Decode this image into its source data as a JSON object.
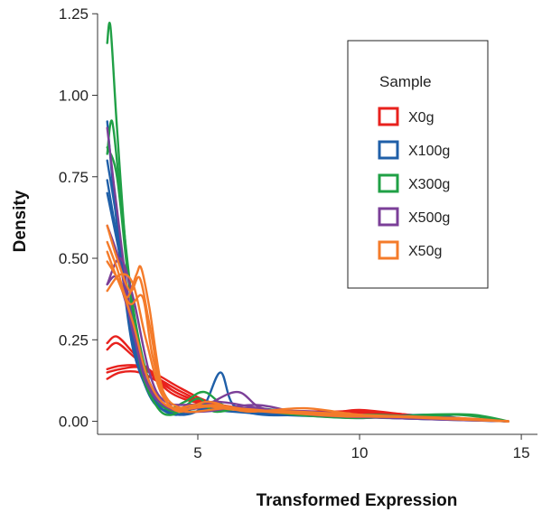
{
  "chart_data": {
    "type": "line",
    "subtype": "density",
    "xlabel": "Transformed Expression",
    "ylabel": "Density",
    "xlim": [
      1.9,
      15.5
    ],
    "ylim": [
      -0.04,
      1.27
    ],
    "x_ticks": [
      5,
      10,
      15
    ],
    "x_tick_labels": [
      "5",
      "10",
      "15"
    ],
    "y_ticks": [
      0,
      0.25,
      0.5,
      0.75,
      1.0,
      1.25
    ],
    "y_tick_labels": [
      "0.00",
      "0.25",
      "0.50",
      "0.75",
      "1.00",
      "1.25"
    ],
    "grid": false,
    "legend": {
      "title": "Sample",
      "placement": "top-right"
    },
    "series": [
      {
        "name": "X0g",
        "color": "#e8211d",
        "curves": [
          [
            [
              2.2,
              0.13
            ],
            [
              2.6,
              0.15
            ],
            [
              3.2,
              0.15
            ],
            [
              3.8,
              0.12
            ],
            [
              4.5,
              0.08
            ],
            [
              5.5,
              0.045
            ],
            [
              7,
              0.03
            ],
            [
              9,
              0.03
            ],
            [
              10.2,
              0.03
            ],
            [
              11.5,
              0.02
            ],
            [
              13,
              0.01
            ],
            [
              14.6,
              0.0
            ]
          ],
          [
            [
              2.2,
              0.15
            ],
            [
              2.6,
              0.16
            ],
            [
              3.2,
              0.165
            ],
            [
              3.8,
              0.13
            ],
            [
              4.5,
              0.09
            ],
            [
              5.5,
              0.05
            ],
            [
              7,
              0.03
            ],
            [
              9,
              0.025
            ],
            [
              10,
              0.035
            ],
            [
              11.5,
              0.02
            ],
            [
              13,
              0.01
            ],
            [
              14.6,
              0.0
            ]
          ],
          [
            [
              2.2,
              0.16
            ],
            [
              2.6,
              0.17
            ],
            [
              3.2,
              0.17
            ],
            [
              3.8,
              0.14
            ],
            [
              4.5,
              0.1
            ],
            [
              5.5,
              0.055
            ],
            [
              7,
              0.035
            ],
            [
              9,
              0.03
            ],
            [
              10,
              0.03
            ],
            [
              11.5,
              0.015
            ],
            [
              13,
              0.008
            ],
            [
              14.6,
              0.0
            ]
          ],
          [
            [
              2.2,
              0.22
            ],
            [
              2.5,
              0.24
            ],
            [
              3.0,
              0.2
            ],
            [
              3.6,
              0.15
            ],
            [
              4.3,
              0.09
            ],
            [
              5.5,
              0.05
            ],
            [
              7,
              0.03
            ],
            [
              9,
              0.02
            ],
            [
              10,
              0.025
            ],
            [
              11.5,
              0.015
            ],
            [
              13,
              0.008
            ],
            [
              14.6,
              0.0
            ]
          ],
          [
            [
              2.2,
              0.24
            ],
            [
              2.5,
              0.26
            ],
            [
              3.0,
              0.21
            ],
            [
              3.6,
              0.14
            ],
            [
              4.3,
              0.08
            ],
            [
              5.5,
              0.045
            ],
            [
              7,
              0.03
            ],
            [
              9,
              0.025
            ],
            [
              10.5,
              0.02
            ],
            [
              12,
              0.012
            ],
            [
              13.5,
              0.005
            ],
            [
              14.6,
              0.0
            ]
          ]
        ]
      },
      {
        "name": "X100g",
        "color": "#1f5fa8",
        "curves": [
          [
            [
              2.2,
              0.92
            ],
            [
              2.5,
              0.6
            ],
            [
              2.9,
              0.3
            ],
            [
              3.4,
              0.12
            ],
            [
              4.0,
              0.04
            ],
            [
              4.6,
              0.02
            ],
            [
              5.2,
              0.05
            ],
            [
              5.7,
              0.15
            ],
            [
              6.1,
              0.05
            ],
            [
              7,
              0.02
            ],
            [
              9,
              0.02
            ],
            [
              11,
              0.01
            ],
            [
              13,
              0.005
            ],
            [
              14.6,
              0.0
            ]
          ],
          [
            [
              2.2,
              0.8
            ],
            [
              2.6,
              0.55
            ],
            [
              3.0,
              0.25
            ],
            [
              3.5,
              0.08
            ],
            [
              4.1,
              0.03
            ],
            [
              5,
              0.04
            ],
            [
              6,
              0.03
            ],
            [
              7.5,
              0.02
            ],
            [
              9,
              0.015
            ],
            [
              11,
              0.012
            ],
            [
              13,
              0.005
            ],
            [
              14.6,
              0.0
            ]
          ],
          [
            [
              2.2,
              0.74
            ],
            [
              2.6,
              0.5
            ],
            [
              3.0,
              0.22
            ],
            [
              3.6,
              0.07
            ],
            [
              4.3,
              0.02
            ],
            [
              5.2,
              0.05
            ],
            [
              6.5,
              0.03
            ],
            [
              8,
              0.02
            ],
            [
              10,
              0.01
            ],
            [
              12,
              0.02
            ],
            [
              13.5,
              0.005
            ],
            [
              14.6,
              0.0
            ]
          ],
          [
            [
              2.2,
              0.7
            ],
            [
              2.7,
              0.45
            ],
            [
              3.1,
              0.2
            ],
            [
              3.7,
              0.06
            ],
            [
              4.4,
              0.02
            ],
            [
              5.5,
              0.04
            ],
            [
              7,
              0.03
            ],
            [
              9,
              0.02
            ],
            [
              11,
              0.01
            ],
            [
              14.6,
              0.0
            ]
          ]
        ]
      },
      {
        "name": "X300g",
        "color": "#20a046",
        "curves": [
          [
            [
              2.2,
              1.16
            ],
            [
              2.3,
              1.21
            ],
            [
              2.5,
              0.9
            ],
            [
              2.8,
              0.5
            ],
            [
              3.2,
              0.18
            ],
            [
              3.7,
              0.05
            ],
            [
              4.2,
              0.02
            ],
            [
              5,
              0.07
            ],
            [
              5.5,
              0.03
            ],
            [
              6.5,
              0.04
            ],
            [
              8,
              0.02
            ],
            [
              10,
              0.01
            ],
            [
              12,
              0.02
            ],
            [
              13.5,
              0.02
            ],
            [
              14.6,
              0.0
            ]
          ],
          [
            [
              2.2,
              0.82
            ],
            [
              2.35,
              0.92
            ],
            [
              2.6,
              0.7
            ],
            [
              3.0,
              0.35
            ],
            [
              3.5,
              0.12
            ],
            [
              4.0,
              0.04
            ],
            [
              4.6,
              0.06
            ],
            [
              5.2,
              0.09
            ],
            [
              6,
              0.04
            ],
            [
              7.5,
              0.03
            ],
            [
              9,
              0.02
            ],
            [
              11,
              0.01
            ],
            [
              13,
              0.02
            ],
            [
              14.6,
              0.0
            ]
          ],
          [
            [
              2.2,
              0.84
            ],
            [
              2.5,
              0.75
            ],
            [
              2.9,
              0.4
            ],
            [
              3.4,
              0.14
            ],
            [
              4.0,
              0.04
            ],
            [
              5,
              0.03
            ],
            [
              6.8,
              0.04
            ],
            [
              8.5,
              0.02
            ],
            [
              10.5,
              0.02
            ],
            [
              12.5,
              0.01
            ],
            [
              14.6,
              0.0
            ]
          ]
        ]
      },
      {
        "name": "X500g",
        "color": "#7b3f98",
        "curves": [
          [
            [
              2.2,
              0.9
            ],
            [
              2.5,
              0.65
            ],
            [
              2.9,
              0.35
            ],
            [
              3.4,
              0.14
            ],
            [
              4.0,
              0.05
            ],
            [
              5,
              0.04
            ],
            [
              6.2,
              0.09
            ],
            [
              7,
              0.04
            ],
            [
              8.5,
              0.03
            ],
            [
              10,
              0.02
            ],
            [
              12,
              0.01
            ],
            [
              14.6,
              0.0
            ]
          ],
          [
            [
              2.2,
              0.42
            ],
            [
              2.6,
              0.5
            ],
            [
              3.0,
              0.38
            ],
            [
              3.5,
              0.15
            ],
            [
              4.0,
              0.06
            ],
            [
              5,
              0.05
            ],
            [
              6.5,
              0.04
            ],
            [
              8,
              0.03
            ],
            [
              10,
              0.02
            ],
            [
              12,
              0.01
            ],
            [
              14.6,
              0.0
            ]
          ],
          [
            [
              2.2,
              0.6
            ],
            [
              2.6,
              0.48
            ],
            [
              3.0,
              0.27
            ],
            [
              3.6,
              0.1
            ],
            [
              4.2,
              0.04
            ],
            [
              5.6,
              0.06
            ],
            [
              7.5,
              0.03
            ],
            [
              9.5,
              0.02
            ],
            [
              11.5,
              0.015
            ],
            [
              14.6,
              0.0
            ]
          ],
          [
            [
              2.2,
              0.42
            ],
            [
              2.5,
              0.44
            ],
            [
              2.9,
              0.32
            ],
            [
              3.4,
              0.12
            ],
            [
              4.1,
              0.04
            ],
            [
              5.2,
              0.03
            ],
            [
              6.8,
              0.05
            ],
            [
              8.5,
              0.02
            ],
            [
              11,
              0.01
            ],
            [
              14.6,
              0.0
            ]
          ]
        ]
      },
      {
        "name": "X50g",
        "color": "#f47b2a",
        "curves": [
          [
            [
              2.2,
              0.55
            ],
            [
              2.5,
              0.47
            ],
            [
              2.8,
              0.38
            ],
            [
              3.1,
              0.45
            ],
            [
              3.25,
              0.47
            ],
            [
              3.5,
              0.35
            ],
            [
              3.9,
              0.1
            ],
            [
              4.4,
              0.03
            ],
            [
              5.3,
              0.06
            ],
            [
              6.5,
              0.03
            ],
            [
              8.3,
              0.04
            ],
            [
              10,
              0.02
            ],
            [
              12,
              0.01
            ],
            [
              14.6,
              0.0
            ]
          ],
          [
            [
              2.2,
              0.6
            ],
            [
              2.5,
              0.5
            ],
            [
              2.9,
              0.4
            ],
            [
              3.2,
              0.44
            ],
            [
              3.5,
              0.3
            ],
            [
              3.9,
              0.1
            ],
            [
              4.5,
              0.04
            ],
            [
              5.5,
              0.05
            ],
            [
              7,
              0.03
            ],
            [
              9,
              0.02
            ],
            [
              11,
              0.015
            ],
            [
              14.6,
              0.0
            ]
          ],
          [
            [
              2.2,
              0.4
            ],
            [
              2.6,
              0.45
            ],
            [
              3.0,
              0.42
            ],
            [
              3.4,
              0.25
            ],
            [
              3.9,
              0.08
            ],
            [
              4.6,
              0.03
            ],
            [
              6,
              0.04
            ],
            [
              8,
              0.025
            ],
            [
              10,
              0.015
            ],
            [
              13,
              0.01
            ],
            [
              14.6,
              0.0
            ]
          ],
          [
            [
              2.2,
              0.52
            ],
            [
              2.5,
              0.44
            ],
            [
              2.9,
              0.36
            ],
            [
              3.3,
              0.38
            ],
            [
              3.6,
              0.2
            ],
            [
              4.1,
              0.05
            ],
            [
              5,
              0.05
            ],
            [
              6.2,
              0.035
            ],
            [
              8,
              0.03
            ],
            [
              10,
              0.02
            ],
            [
              12.5,
              0.01
            ],
            [
              14.6,
              0.0
            ]
          ],
          [
            [
              2.2,
              0.49
            ],
            [
              2.6,
              0.42
            ],
            [
              3.0,
              0.3
            ],
            [
              3.5,
              0.12
            ],
            [
              4.2,
              0.04
            ],
            [
              5.4,
              0.045
            ],
            [
              7.2,
              0.03
            ],
            [
              9.5,
              0.015
            ],
            [
              11.5,
              0.015
            ],
            [
              14.6,
              0.0
            ]
          ]
        ]
      }
    ]
  }
}
